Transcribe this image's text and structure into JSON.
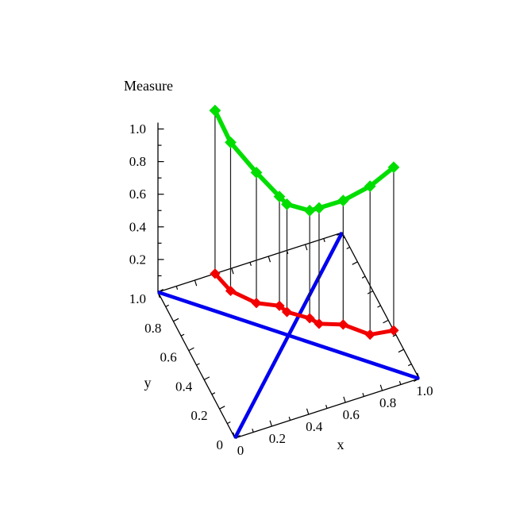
{
  "page": {
    "background": "#ffffff"
  },
  "chart_data": {
    "type": "scatter3d",
    "title": "Measure",
    "xlabel": "x",
    "ylabel": "y",
    "zlabel": "Measure",
    "xlim": [
      0,
      1
    ],
    "ylim": [
      0,
      1
    ],
    "zlim": [
      0,
      1
    ],
    "grid": false,
    "legend": null,
    "axis_color": "#000000",
    "x_ticks": {
      "values": [
        0,
        0.2,
        0.4,
        0.6,
        0.8,
        1.0
      ],
      "labels": [
        "0",
        "0.2",
        "0.4",
        "0.6",
        "0.8",
        "1.0"
      ],
      "minor_step": 0.1
    },
    "y_ticks": {
      "values": [
        0,
        0.2,
        0.4,
        0.6,
        0.8,
        1.0
      ],
      "labels": [
        "0",
        "0.2",
        "0.4",
        "0.6",
        "0.8",
        "1.0"
      ],
      "minor_step": 0.1
    },
    "z_ticks": {
      "values": [
        0.2,
        0.4,
        0.6,
        0.8,
        1.0
      ],
      "labels": [
        "0.2",
        "0.4",
        "0.6",
        "0.8",
        "1.0"
      ],
      "minor_step": 0.1
    },
    "points": [
      {
        "x": 0.31,
        "y": 1.0,
        "measure": 1.0
      },
      {
        "x": 0.34,
        "y": 0.87,
        "measure": 0.91
      },
      {
        "x": 0.43,
        "y": 0.75,
        "measure": 0.8
      },
      {
        "x": 0.53,
        "y": 0.69,
        "measure": 0.67
      },
      {
        "x": 0.55,
        "y": 0.64,
        "measure": 0.66
      },
      {
        "x": 0.64,
        "y": 0.56,
        "measure": 0.66
      },
      {
        "x": 0.67,
        "y": 0.51,
        "measure": 0.71
      },
      {
        "x": 0.78,
        "y": 0.46,
        "measure": 0.76
      },
      {
        "x": 0.88,
        "y": 0.35,
        "measure": 0.91
      },
      {
        "x": 1.0,
        "y": 0.33,
        "measure": 1.0
      }
    ],
    "series": [
      {
        "name": "measure-curve",
        "color": "#00DE00",
        "marker": "diamond",
        "plane": "measure"
      },
      {
        "name": "data-points-base",
        "color": "#F20000",
        "marker": "diamond",
        "plane": "base"
      }
    ],
    "reference_lines": [
      {
        "name": "diagonal",
        "from": [
          0,
          0
        ],
        "to": [
          1,
          1
        ],
        "color": "#0000F0"
      },
      {
        "name": "anti-diagonal",
        "from": [
          0,
          1
        ],
        "to": [
          1,
          0
        ],
        "color": "#0000F0"
      }
    ],
    "drop_lines": {
      "color": "#1a1a1a"
    }
  }
}
